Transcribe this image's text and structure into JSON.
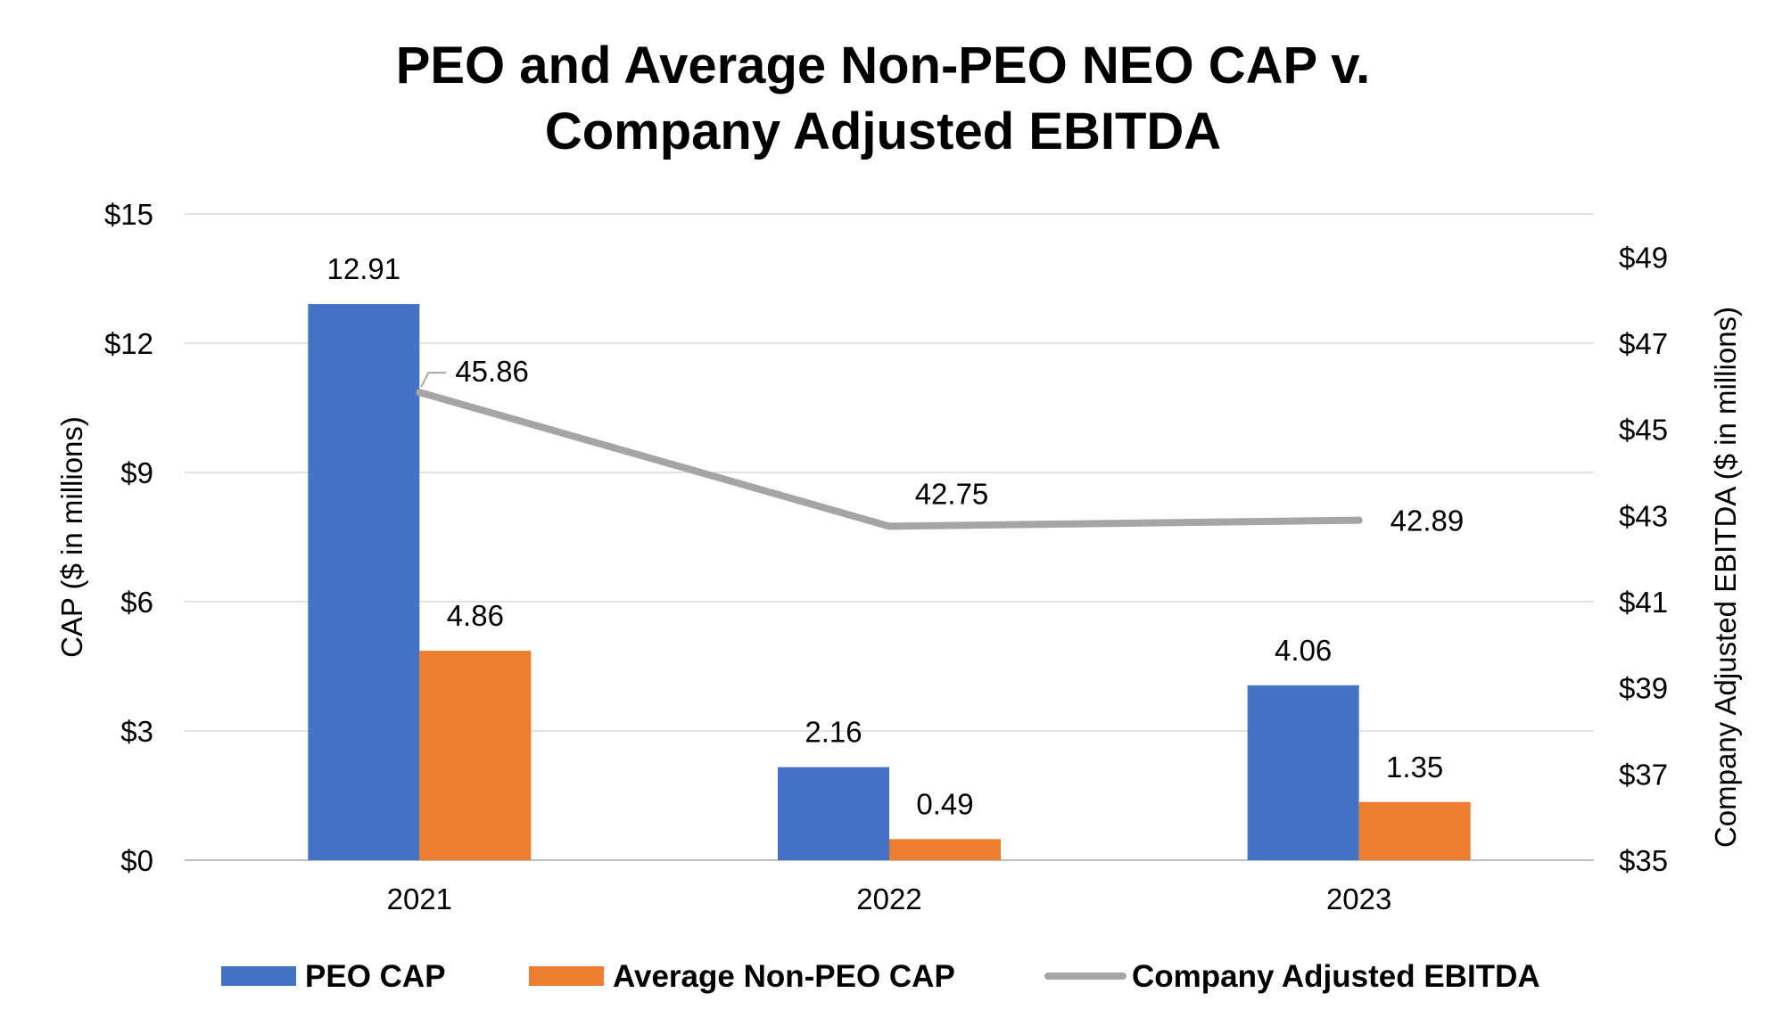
{
  "chart_data": {
    "type": "bar",
    "title_lines": [
      "PEO and Average Non-PEO NEO CAP v.",
      "Company Adjusted EBITDA"
    ],
    "categories": [
      "2021",
      "2022",
      "2023"
    ],
    "ylabel": "CAP ($ in millions)",
    "y2label": "Company Adjusted EBITDA ($ in millions)",
    "ylim": [
      0,
      15
    ],
    "y_ticks": [
      0,
      3,
      6,
      9,
      12,
      15
    ],
    "y_tick_labels": [
      "$0",
      "$3",
      "$6",
      "$9",
      "$12",
      "$15"
    ],
    "y2lim": [
      35,
      50
    ],
    "y2_ticks": [
      35,
      37,
      39,
      41,
      43,
      45,
      47,
      49
    ],
    "y2_tick_labels": [
      "$35",
      "$37",
      "$39",
      "$41",
      "$43",
      "$45",
      "$47",
      "$49"
    ],
    "grid": true,
    "legend_position": "bottom",
    "series": [
      {
        "name": "PEO CAP",
        "type": "bar",
        "axis": "left",
        "color": "#4472C4",
        "values": [
          12.91,
          2.16,
          4.06
        ],
        "labels": [
          "12.91",
          "2.16",
          "4.06"
        ]
      },
      {
        "name": "Average Non-PEO CAP",
        "type": "bar",
        "axis": "left",
        "color": "#ED7D31",
        "values": [
          4.86,
          0.49,
          1.35
        ],
        "labels": [
          "4.86",
          "0.49",
          "1.35"
        ]
      },
      {
        "name": "Company Adjusted EBITDA",
        "type": "line",
        "axis": "right",
        "color": "#A5A5A5",
        "values": [
          45.86,
          42.75,
          42.89
        ],
        "labels": [
          "45.86",
          "42.75",
          "42.89"
        ]
      }
    ]
  }
}
